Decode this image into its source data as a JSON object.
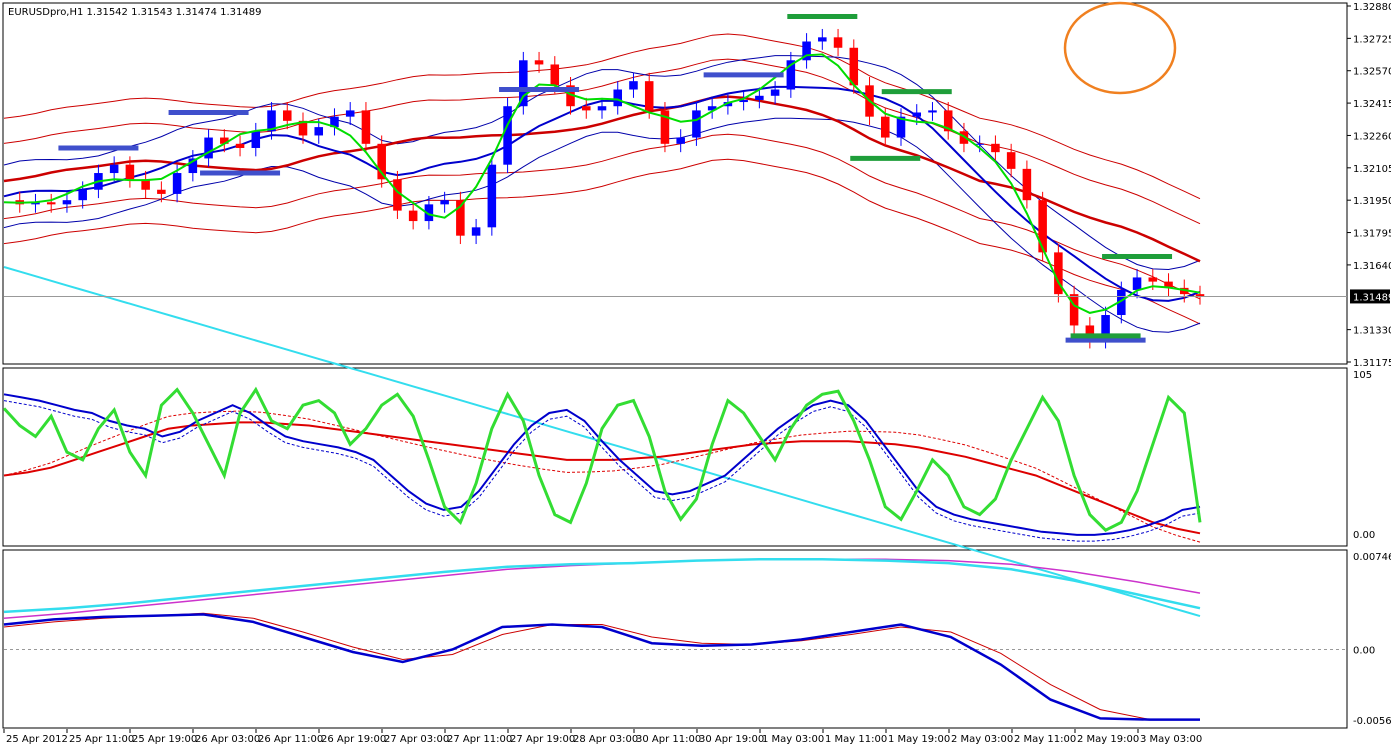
{
  "window": {
    "header": "EURUSDpro,H1  1.31542 1.31543 1.31474 1.31489"
  },
  "chart_data": [
    {
      "type": "candlestick",
      "symbol": "EURUSDpro",
      "timeframe": "H1",
      "ohlc_last": {
        "open": 1.31542,
        "high": 1.31543,
        "low": 1.31474,
        "close": 1.31489
      },
      "ylim": [
        1.31175,
        1.3288
      ],
      "y_ticks": [
        "1.32880",
        "1.32725",
        "1.32570",
        "1.32415",
        "1.32260",
        "1.32105",
        "1.31950",
        "1.31795",
        "1.31640",
        "1.31489",
        "1.31330",
        "1.31175"
      ],
      "current_price_label": "1.31489",
      "x_ticks": [
        "25 Apr 2012",
        "25 Apr 11:00",
        "25 Apr 19:00",
        "26 Apr 03:00",
        "26 Apr 11:00",
        "26 Apr 19:00",
        "27 Apr 03:00",
        "27 Apr 11:00",
        "27 Apr 19:00",
        "28 Apr 03:00",
        "30 Apr 11:00",
        "30 Apr 19:00",
        "1 May 03:00",
        "1 May 11:00",
        "1 May 19:00",
        "2 May 03:00",
        "2 May 11:00",
        "2 May 19:00",
        "3 May 03:00"
      ],
      "candle_close_path": [
        1.3195,
        1.3193,
        1.3194,
        1.3193,
        1.3195,
        1.32,
        1.3208,
        1.3212,
        1.3205,
        1.32,
        1.3198,
        1.3208,
        1.3215,
        1.3225,
        1.3222,
        1.322,
        1.3228,
        1.3238,
        1.3233,
        1.3226,
        1.323,
        1.3235,
        1.3238,
        1.3222,
        1.3205,
        1.319,
        1.3185,
        1.3193,
        1.3195,
        1.3178,
        1.3182,
        1.3212,
        1.324,
        1.3262,
        1.326,
        1.325,
        1.324,
        1.3238,
        1.324,
        1.3248,
        1.3252,
        1.3238,
        1.3222,
        1.3225,
        1.3238,
        1.324,
        1.3242,
        1.3243,
        1.3245,
        1.3248,
        1.3262,
        1.3271,
        1.3273,
        1.3268,
        1.325,
        1.3235,
        1.3225,
        1.3235,
        1.3237,
        1.3238,
        1.3228,
        1.3222,
        1.3222,
        1.3218,
        1.321,
        1.3195,
        1.317,
        1.315,
        1.3135,
        1.3128,
        1.314,
        1.3152,
        1.3158,
        1.3156,
        1.3153,
        1.315,
        1.3149
      ],
      "candle_colors": {
        "bull": "#0000FF",
        "bear": "#FF0000"
      },
      "markers": {
        "blue_bars": "#3F4FCC",
        "green_bars": "#1E9E3A",
        "highlight_circle": "#F08020"
      },
      "lines": {
        "ma_fast": "#00DD00",
        "ma_slow": "#0000CC",
        "ma_long": "#CC0000",
        "envelope": "#CC0000",
        "bands": "#0000AA",
        "ma_trend": "#33DDEE"
      }
    },
    {
      "type": "line",
      "name": "stochastic",
      "y_ticks": [
        "105",
        "0.00"
      ],
      "ylim": [
        0,
        105
      ],
      "series_colors": [
        "#33DD33",
        "#0000CC",
        "#DD0000"
      ],
      "series_green": [
        83,
        72,
        65,
        78,
        55,
        50,
        70,
        82,
        55,
        40,
        85,
        95,
        80,
        60,
        40,
        80,
        95,
        75,
        70,
        85,
        88,
        80,
        60,
        70,
        85,
        92,
        78,
        50,
        20,
        10,
        35,
        70,
        92,
        75,
        40,
        15,
        10,
        35,
        70,
        85,
        88,
        65,
        30,
        12,
        25,
        60,
        88,
        80,
        65,
        50,
        70,
        85,
        92,
        94,
        75,
        50,
        20,
        12,
        30,
        50,
        40,
        20,
        15,
        25,
        50,
        70,
        90,
        75,
        40,
        15,
        5,
        10,
        30,
        60,
        90,
        80,
        10
      ],
      "series_blue": [
        92,
        90,
        88,
        85,
        82,
        80,
        75,
        72,
        70,
        65,
        68,
        75,
        80,
        85,
        80,
        72,
        65,
        62,
        60,
        58,
        55,
        50,
        40,
        30,
        22,
        18,
        20,
        30,
        45,
        60,
        72,
        80,
        82,
        75,
        62,
        50,
        40,
        30,
        28,
        30,
        35,
        40,
        50,
        60,
        70,
        78,
        85,
        88,
        85,
        75,
        60,
        45,
        30,
        20,
        15,
        12,
        10,
        8,
        6,
        4,
        3,
        2,
        2,
        3,
        5,
        8,
        12,
        18,
        20
      ],
      "series_red": [
        40,
        42,
        45,
        50,
        55,
        60,
        65,
        70,
        72,
        73,
        74,
        74,
        73,
        72,
        70,
        68,
        66,
        64,
        62,
        60,
        58,
        56,
        54,
        52,
        50,
        50,
        50,
        51,
        52,
        54,
        56,
        58,
        60,
        61,
        62,
        62,
        62,
        61,
        60,
        58,
        55,
        52,
        48,
        44,
        40,
        34,
        28,
        22,
        16,
        10,
        6,
        3
      ]
    },
    {
      "type": "line",
      "name": "macd",
      "y_ticks": [
        "0.007466",
        "0.00",
        "-0.00563"
      ],
      "ylim": [
        -0.00563,
        0.007466
      ],
      "series_colors": [
        "#33DDEE",
        "#CC33CC",
        "#0000CC",
        "#CC0000"
      ],
      "series_cyan": [
        0.003,
        0.0033,
        0.0037,
        0.0042,
        0.0047,
        0.0052,
        0.0057,
        0.0062,
        0.0066,
        0.0068,
        0.0069,
        0.0071,
        0.0072,
        0.0072,
        0.0071,
        0.0069,
        0.0064,
        0.0055,
        0.0044,
        0.0033
      ],
      "series_magenta": [
        0.0025,
        0.0029,
        0.0034,
        0.0039,
        0.0044,
        0.0049,
        0.0054,
        0.0059,
        0.0064,
        0.0067,
        0.0069,
        0.0071,
        0.0072,
        0.0072,
        0.0072,
        0.0071,
        0.0068,
        0.0062,
        0.0054,
        0.0045
      ],
      "series_blue": [
        0.002,
        0.0024,
        0.0026,
        0.0027,
        0.0028,
        0.0022,
        0.001,
        -0.0002,
        -0.001,
        0.0,
        0.0018,
        0.002,
        0.0018,
        0.0005,
        0.0003,
        0.0004,
        0.0008,
        0.0014,
        0.002,
        0.001,
        -0.0012,
        -0.004,
        -0.0055,
        -0.0056,
        -0.0056
      ],
      "series_red": [
        0.0018,
        0.0022,
        0.0025,
        0.0027,
        0.0029,
        0.0025,
        0.0014,
        0.0002,
        -0.0008,
        -0.0004,
        0.0012,
        0.002,
        0.002,
        0.001,
        0.0005,
        0.0004,
        0.0007,
        0.0012,
        0.0018,
        0.0014,
        -0.0003,
        -0.0028,
        -0.0048,
        -0.0056,
        -0.0056
      ]
    }
  ]
}
